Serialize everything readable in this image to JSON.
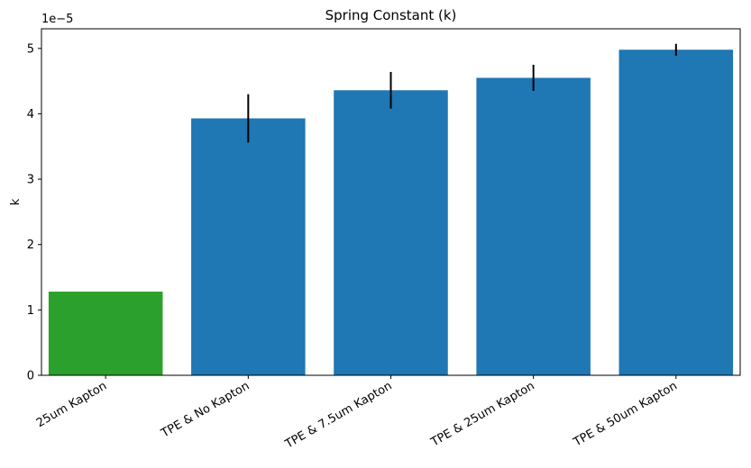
{
  "chart_data": {
    "type": "bar",
    "title": "Spring Constant (k)",
    "xlabel": "",
    "ylabel": "k",
    "y_scale_offset_label": "1e−5",
    "y_scale_factor": 1e-05,
    "categories": [
      "25um Kapton",
      "TPE & No Kapton",
      "TPE & 7.5um Kapton",
      "TPE & 25um Kapton",
      "TPE & 50um Kapton"
    ],
    "values": [
      1.28e-05,
      3.93e-05,
      4.36e-05,
      4.55e-05,
      4.98e-05
    ],
    "errors": [
      0,
      3.7e-06,
      2.8e-06,
      2e-06,
      9e-07
    ],
    "bar_colors": [
      "#2ca02c",
      "#1f77b4",
      "#1f77b4",
      "#1f77b4",
      "#1f77b4"
    ],
    "error_color": "#000000",
    "ylim": [
      0,
      5.3e-05
    ],
    "yticks": [
      0,
      1,
      2,
      3,
      4,
      5
    ],
    "ytick_labels": [
      "0",
      "1",
      "2",
      "3",
      "4",
      "5"
    ],
    "grid": false,
    "legend": "none"
  }
}
